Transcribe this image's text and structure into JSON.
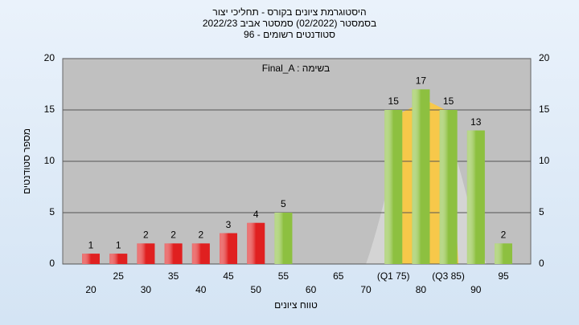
{
  "chart_data": {
    "type": "bar",
    "title": "היסטוגרמת ציונים בקורס - תחליכי יצור",
    "subtitle": "בסמסטר  (02/2022)  סמסטר אביב 2022/23",
    "subtitle2": "סטודנטים רשומים - 96",
    "annotation": "Final_A : בשימה",
    "x_label": "טווח ציונים",
    "y_label": "מספר סטודנטים",
    "categories": [
      "20",
      "25",
      "30",
      "35",
      "40",
      "45",
      "50",
      "55",
      "60",
      "65",
      "70",
      "(Q1 75)",
      "80",
      "(Q3 85)",
      "90",
      "95"
    ],
    "values": [
      1,
      1,
      2,
      2,
      2,
      3,
      4,
      5,
      0,
      0,
      0,
      15,
      17,
      15,
      13,
      2
    ],
    "colors": [
      "#e02020",
      "#e02020",
      "#e02020",
      "#e02020",
      "#e02020",
      "#e02020",
      "#e02020",
      "#8dc040",
      "#8dc040",
      "#8dc040",
      "#8dc040",
      "#8dc040",
      "#8dc040",
      "#8dc040",
      "#8dc040",
      "#8dc040"
    ],
    "ylim": [
      0,
      20
    ],
    "yticks": [
      0,
      5,
      10,
      15,
      20
    ],
    "grid": true
  }
}
